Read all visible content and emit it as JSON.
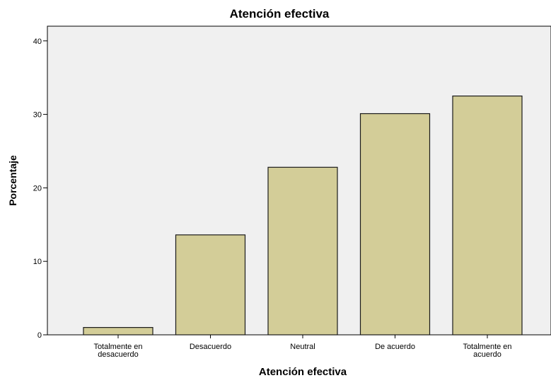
{
  "chart_data": {
    "type": "bar",
    "title": "Atención efectiva",
    "xlabel": "Atención efectiva",
    "ylabel": "Porcentaje",
    "categories": [
      [
        "Totalmente en",
        "desacuerdo"
      ],
      [
        "Desacuerdo"
      ],
      [
        "Neutral"
      ],
      [
        "De acuerdo"
      ],
      [
        "Totalmente en",
        "acuerdo"
      ]
    ],
    "values": [
      1.0,
      13.6,
      22.8,
      30.1,
      32.5
    ],
    "ylim": [
      0,
      42
    ],
    "yticks": [
      "0",
      "10",
      "20",
      "30",
      "40"
    ],
    "grid": false,
    "colors": {
      "bar_fill": "#d3cd98",
      "bar_stroke": "#1a1a1a",
      "plot_background": "#f0f0f0"
    }
  }
}
